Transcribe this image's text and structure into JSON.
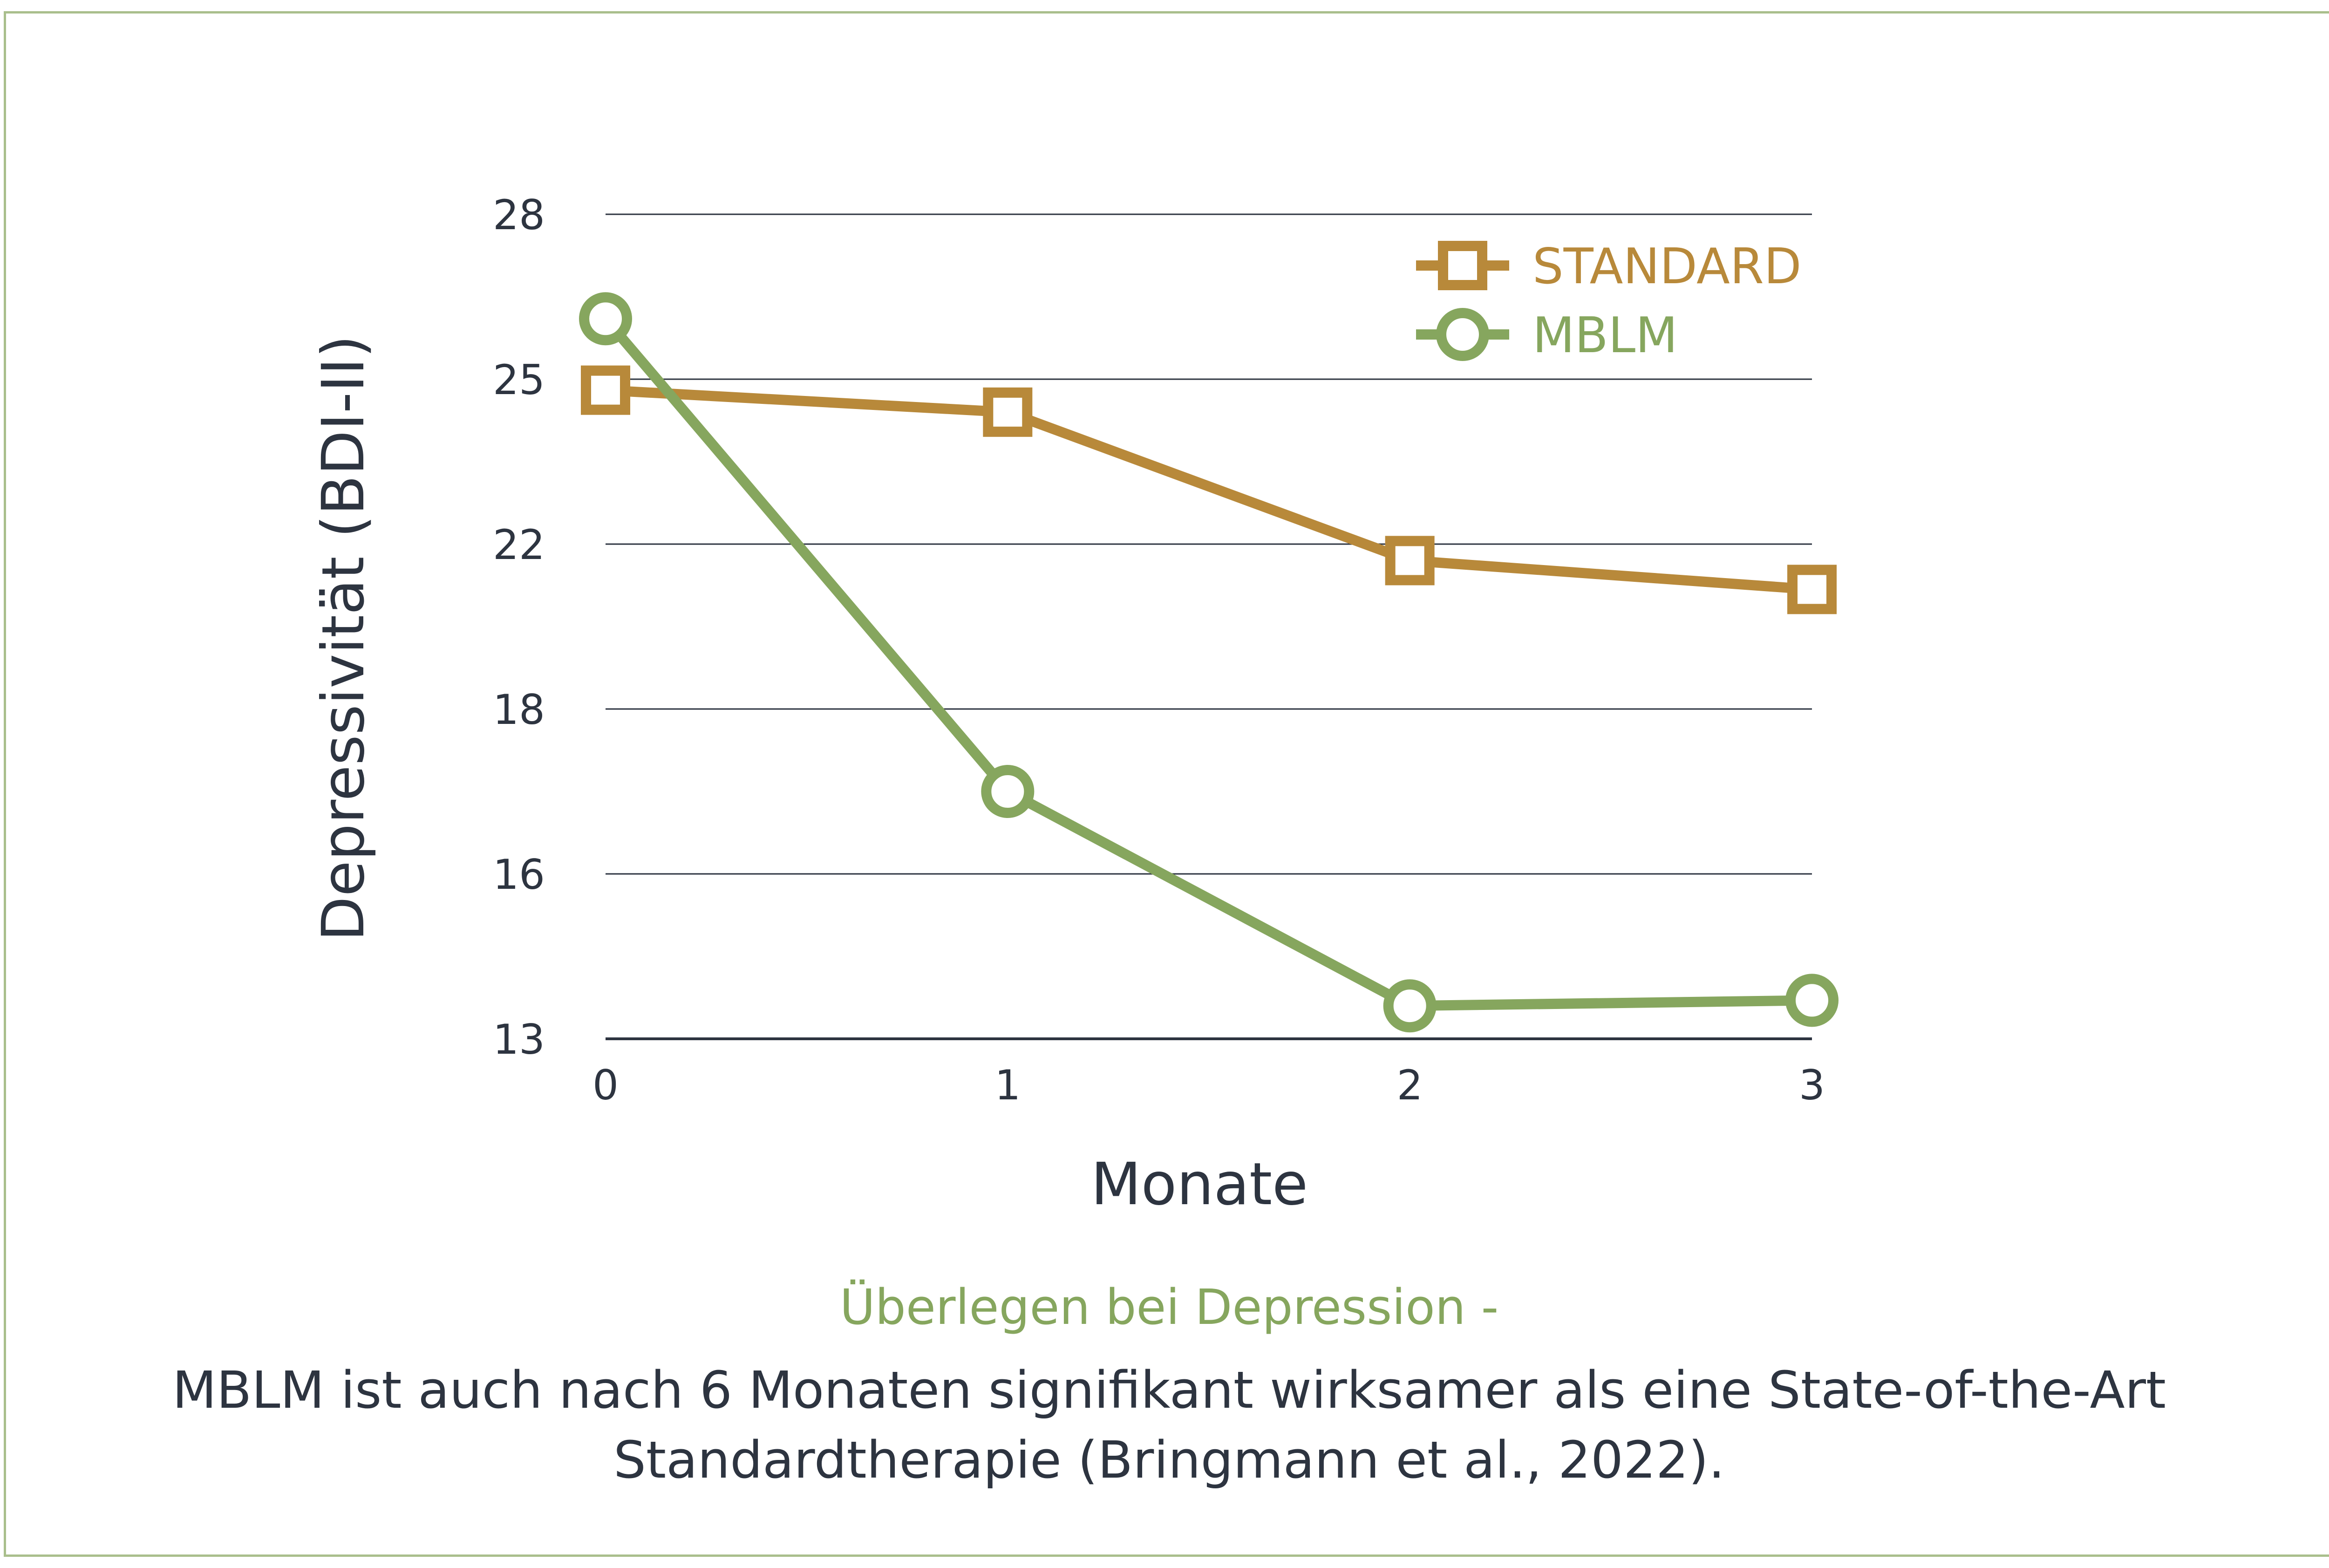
{
  "chart_data": {
    "type": "line",
    "x": [
      0,
      1,
      2,
      3
    ],
    "xlabel": "Monate",
    "ylabel": "Depressivität (BDI-II)",
    "yticks": [
      13,
      16,
      18,
      22,
      25,
      28
    ],
    "xticks": [
      0,
      1,
      2,
      3
    ],
    "ylim": [
      13,
      28
    ],
    "grid": true,
    "legend": "top-right",
    "series": [
      {
        "name": "STANDARD",
        "marker": "square",
        "color": "#b8893a",
        "values": [
          24.8,
          24.4,
          21.6,
          20.9
        ]
      },
      {
        "name": "MBLM",
        "marker": "circle",
        "color": "#86a65e",
        "values": [
          26.1,
          17.0,
          13.6,
          13.7
        ]
      }
    ]
  },
  "caption": {
    "title": "Überlegen bei Depression -",
    "line1": "MBLM ist auch nach 6 Monaten signifikant wirksamer als eine State-of-the-Art",
    "line2": "Standardtherapie (Bringmann et al., 2022)."
  },
  "colors": {
    "text": "#2d3440",
    "grid": "#2d3440",
    "frame": "#a9bf8c"
  }
}
